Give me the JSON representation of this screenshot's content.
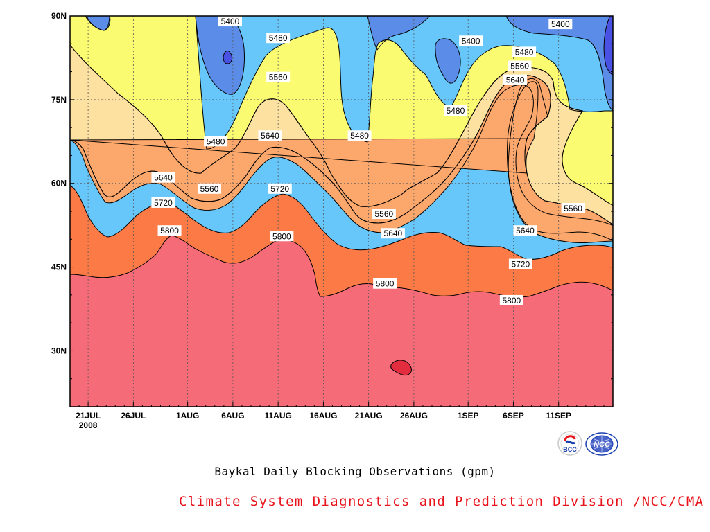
{
  "chart_data": {
    "type": "contour",
    "title": "Baykal Daily Blocking Observations (gpm)",
    "x_ticks": [
      {
        "label": "21JUL",
        "sub": "2008",
        "day": 2
      },
      {
        "label": "26JUL",
        "sub": "",
        "day": 7
      },
      {
        "label": "1AUG",
        "sub": "",
        "day": 13
      },
      {
        "label": "6AUG",
        "sub": "",
        "day": 18
      },
      {
        "label": "11AUG",
        "sub": "",
        "day": 23
      },
      {
        "label": "16AUG",
        "sub": "",
        "day": 28
      },
      {
        "label": "21AUG",
        "sub": "",
        "day": 33
      },
      {
        "label": "26AUG",
        "sub": "",
        "day": 38
      },
      {
        "label": "1SEP",
        "sub": "",
        "day": 44
      },
      {
        "label": "6SEP",
        "sub": "",
        "day": 49
      },
      {
        "label": "11SEP",
        "sub": "",
        "day": 54
      }
    ],
    "y_ticks": [
      {
        "label": "30N",
        "lat": 30
      },
      {
        "label": "45N",
        "lat": 45
      },
      {
        "label": "60N",
        "lat": 60
      },
      {
        "label": "75N",
        "lat": 75
      },
      {
        "label": "90N",
        "lat": 90
      }
    ],
    "xlim": [
      0,
      60
    ],
    "ylim": [
      20,
      90
    ],
    "grid": true,
    "levels": [
      5320,
      5400,
      5480,
      5560,
      5640,
      5720,
      5800,
      5880
    ],
    "contour_labels": [
      {
        "text": "5400",
        "day": 17.7,
        "lat": 89.0
      },
      {
        "text": "5480",
        "day": 23.0,
        "lat": 86.0
      },
      {
        "text": "5400",
        "day": 44.3,
        "lat": 85.5
      },
      {
        "text": "5480",
        "day": 50.2,
        "lat": 83.5
      },
      {
        "text": "5400",
        "day": 54.2,
        "lat": 88.5
      },
      {
        "text": "5560",
        "day": 23.0,
        "lat": 79.0
      },
      {
        "text": "5560",
        "day": 49.7,
        "lat": 81.0
      },
      {
        "text": "5640",
        "day": 49.2,
        "lat": 78.5
      },
      {
        "text": "5480",
        "day": 42.6,
        "lat": 73.0
      },
      {
        "text": "5480",
        "day": 16.1,
        "lat": 67.5
      },
      {
        "text": "5640",
        "day": 22.1,
        "lat": 68.5
      },
      {
        "text": "5480",
        "day": 32.0,
        "lat": 68.5
      },
      {
        "text": "5640",
        "day": 10.3,
        "lat": 61.0
      },
      {
        "text": "5560",
        "day": 15.4,
        "lat": 59.0
      },
      {
        "text": "5720",
        "day": 23.2,
        "lat": 59.0
      },
      {
        "text": "5720",
        "day": 10.3,
        "lat": 56.5
      },
      {
        "text": "5560",
        "day": 34.7,
        "lat": 54.5
      },
      {
        "text": "5560",
        "day": 55.6,
        "lat": 55.5
      },
      {
        "text": "5800",
        "day": 11.0,
        "lat": 51.5
      },
      {
        "text": "5800",
        "day": 23.4,
        "lat": 50.5
      },
      {
        "text": "5640",
        "day": 35.7,
        "lat": 51.0
      },
      {
        "text": "5640",
        "day": 50.3,
        "lat": 51.5
      },
      {
        "text": "5720",
        "day": 49.8,
        "lat": 45.5
      },
      {
        "text": "5800",
        "day": 34.8,
        "lat": 42.0
      },
      {
        "text": "5800",
        "day": 48.8,
        "lat": 39.0
      }
    ]
  },
  "footer": {
    "title": "Baykal Daily Blocking Observations (gpm)",
    "credit": "Climate System Diagnostics and Prediction Division /NCC/CMA"
  },
  "logos": {
    "left": "BCC",
    "right": "NCC"
  },
  "colors": {
    "lt5320": "#4a52e6",
    "lt5400": "#5b8de8",
    "lt5480": "#67c7fb",
    "lt5560": "#fbfb72",
    "lt5640": "#fde1a1",
    "lt5720": "#fca76c",
    "lt5800": "#fb7a45",
    "lt5880": "#f56c78",
    "ge5880": "#e32c3e",
    "credit": "#e8141c"
  }
}
